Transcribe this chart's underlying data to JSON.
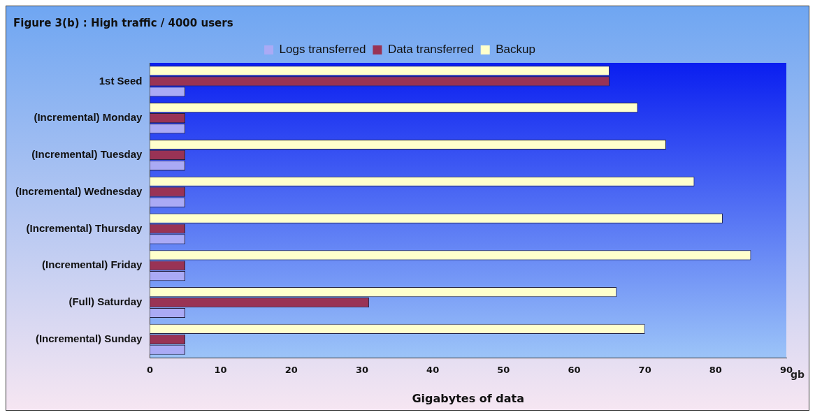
{
  "chart_data": {
    "type": "bar",
    "orientation": "horizontal",
    "title": "Figure 3(b) : High traffic / 4000 users",
    "xlabel": "Gigabytes of data",
    "categories": [
      "1st Seed",
      "(Incremental) Monday",
      "(Incremental) Tuesday",
      "(Incremental) Wednesday",
      "(Incremental) Thursday",
      "(Incremental) Friday",
      "(Full) Saturday",
      "(Incremental) Sunday"
    ],
    "series": [
      {
        "name": "Backup",
        "color": "#ffffcc",
        "values": [
          65,
          69,
          73,
          77,
          81,
          85,
          66,
          70
        ]
      },
      {
        "name": "Data transferred",
        "color": "#993355",
        "values": [
          65,
          5,
          5,
          5,
          5,
          5,
          31,
          5
        ]
      },
      {
        "name": "Logs transferred",
        "color": "#aaaaf5",
        "values": [
          5,
          5,
          5,
          5,
          5,
          5,
          5,
          5
        ]
      }
    ],
    "xlim": [
      0,
      90
    ],
    "xticks": [
      0,
      10,
      20,
      30,
      40,
      50,
      60,
      70,
      80,
      90
    ],
    "grid": false,
    "legend": "top",
    "annotations": [
      "gb"
    ]
  }
}
